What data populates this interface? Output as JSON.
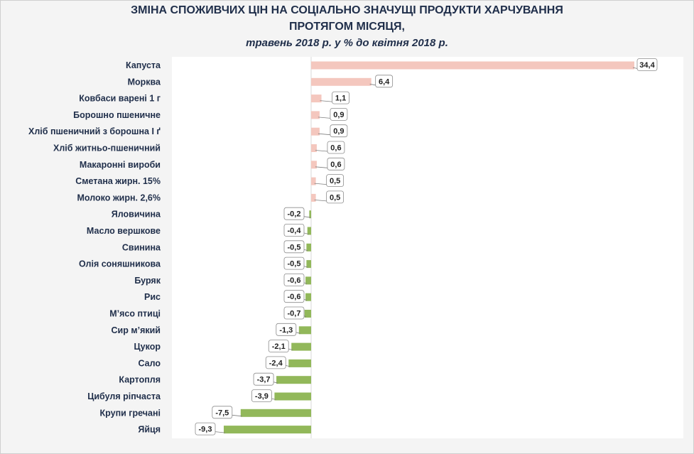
{
  "title_line1": "ЗМІНА СПОЖИВЧИХ ЦІН НА СОЦІАЛЬНО ЗНАЧУЩІ ПРОДУКТИ ХАРЧУВАННЯ",
  "title_line2": "ПРОТЯГОМ МІСЯЦЯ,",
  "subtitle": "травень 2018  р. у % до квітня 2018 р.",
  "colors": {
    "positive": "#f4c7be",
    "negative": "#92b85a",
    "label_text": "#1f2e4a",
    "plot_bg": "#ffffff",
    "zero_line": "#d9d9d9"
  },
  "chart_data": {
    "type": "bar",
    "orientation": "horizontal",
    "xlim": [
      -10.5,
      35
    ],
    "categories": [
      "Капуста",
      "Морква",
      "Ковбаси варені 1 г",
      "Борошно пшеничне",
      "Хліб пшеничний з борошна І ґ",
      "Хліб житньо-пшеничний",
      "Макаронні вироби",
      "Сметана жирн. 15%",
      "Молоко жирн. 2,6%",
      "Яловичина",
      "Масло вершкове",
      "Свинина",
      "Олія соняшникова",
      "Буряк",
      "Рис",
      "М’ясо птиці",
      "Сир м’який",
      "Цукор",
      "Сало",
      "Картопля",
      "Цибуля ріпчаста",
      "Крупи гречані",
      "Яйця"
    ],
    "values": [
      34.4,
      6.4,
      1.1,
      0.9,
      0.9,
      0.6,
      0.6,
      0.5,
      0.5,
      -0.2,
      -0.4,
      -0.5,
      -0.5,
      -0.6,
      -0.6,
      -0.7,
      -1.3,
      -2.1,
      -2.4,
      -3.7,
      -3.9,
      -7.5,
      -9.3
    ],
    "data_labels": [
      "34,4",
      "6,4",
      "1,1",
      "0,9",
      "0,9",
      "0,6",
      "0,6",
      "0,5",
      "0,5",
      "-0,2",
      "-0,4",
      "-0,5",
      "-0,5",
      "-0,6",
      "-0,6",
      "-0,7",
      "-1,3",
      "-2,1",
      "-2,4",
      "-3,7",
      "-3,9",
      "-7,5",
      "-9,3"
    ]
  }
}
